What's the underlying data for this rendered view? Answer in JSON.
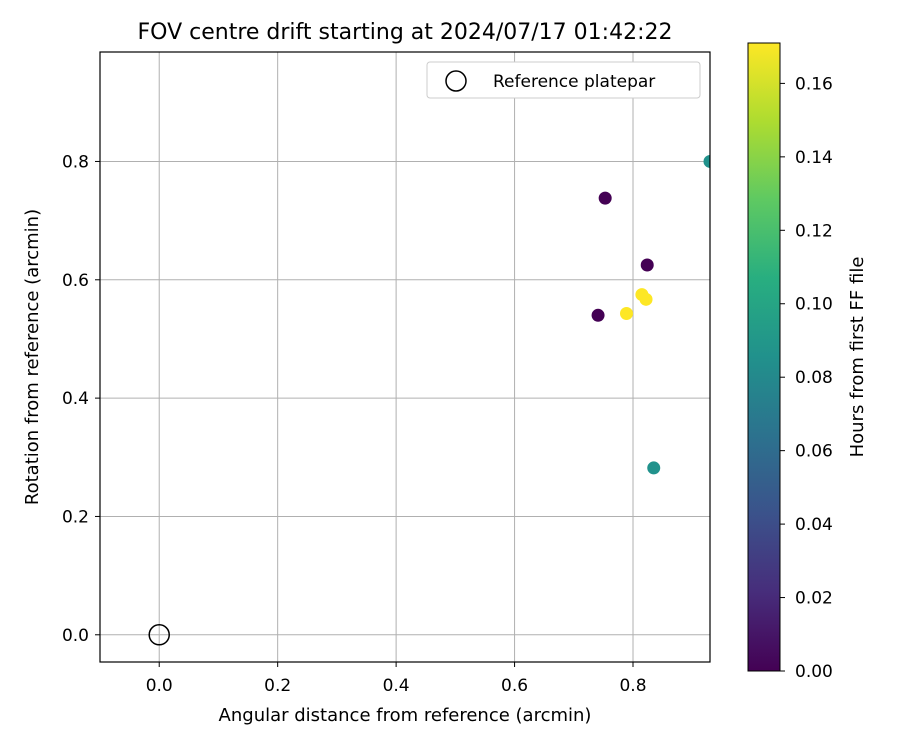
{
  "chart_data": {
    "type": "scatter",
    "title": "FOV centre drift starting at 2024/07/17 01:42:22",
    "xlabel": "Angular distance from reference (arcmin)",
    "ylabel": "Rotation from reference (arcmin)",
    "xlim": [
      -0.1,
      0.93
    ],
    "ylim": [
      -0.046,
      0.985
    ],
    "xticks": [
      "0.0",
      "0.2",
      "0.4",
      "0.6",
      "0.8"
    ],
    "yticks": [
      "0.0",
      "0.2",
      "0.4",
      "0.6",
      "0.8"
    ],
    "grid": true,
    "legend": {
      "position": "top-right",
      "entries": [
        "Reference platepar"
      ]
    },
    "reference_point": {
      "x": 0.0,
      "y": 0.0,
      "marker": "hollow-circle"
    },
    "colorbar": {
      "label": "Hours from first FF file",
      "colormap": "viridis",
      "range": [
        0.0,
        0.171
      ],
      "ticks": [
        "0.00",
        "0.02",
        "0.04",
        "0.06",
        "0.08",
        "0.10",
        "0.12",
        "0.14",
        "0.16"
      ]
    },
    "points": [
      {
        "x": 0.753,
        "y": 0.738,
        "hours": 0.0
      },
      {
        "x": 0.824,
        "y": 0.625,
        "hours": 0.0
      },
      {
        "x": 0.741,
        "y": 0.54,
        "hours": 0.0
      },
      {
        "x": 0.835,
        "y": 0.282,
        "hours": 0.086
      },
      {
        "x": 0.93,
        "y": 0.8,
        "hours": 0.086
      },
      {
        "x": 0.815,
        "y": 0.575,
        "hours": 0.171
      },
      {
        "x": 0.822,
        "y": 0.567,
        "hours": 0.171
      },
      {
        "x": 0.789,
        "y": 0.543,
        "hours": 0.171
      }
    ]
  }
}
